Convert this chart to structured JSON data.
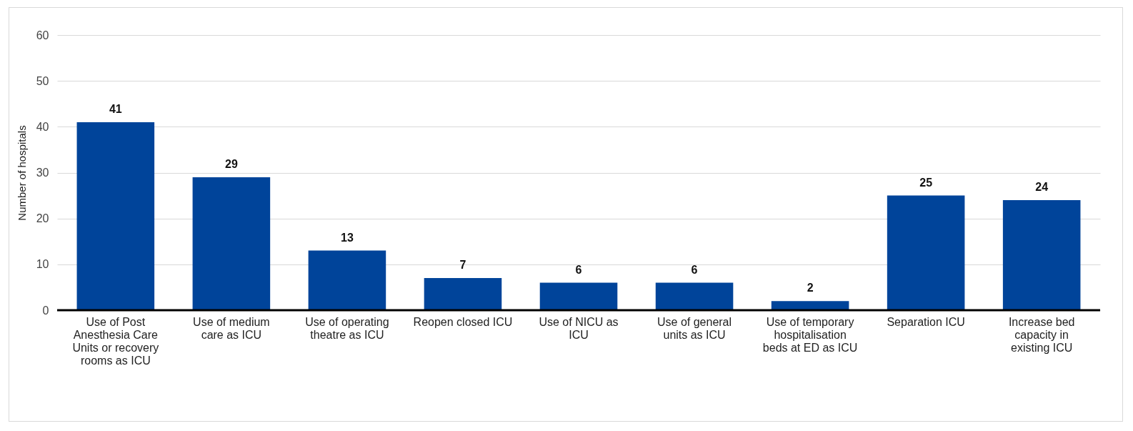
{
  "chart_data": {
    "type": "bar",
    "ylabel": "Number of hospitals",
    "categories": [
      "Use of Post Anesthesia Care Units or recovery rooms as ICU",
      "Use of medium care as ICU",
      "Use of operating theatre as ICU",
      "Reopen closed ICU",
      "Use of NICU as ICU",
      "Use of general units as ICU",
      "Use of temporary hospitalisation beds at ED as ICU",
      "Separation ICU",
      "Increase bed capacity in existing ICU"
    ],
    "values": [
      41,
      29,
      13,
      7,
      6,
      6,
      2,
      25,
      24
    ],
    "color": "#00449a",
    "ylim": [
      0,
      60
    ],
    "yticks": [
      0,
      10,
      20,
      30,
      40,
      50,
      60
    ],
    "grid": "y",
    "data_labels": true
  }
}
